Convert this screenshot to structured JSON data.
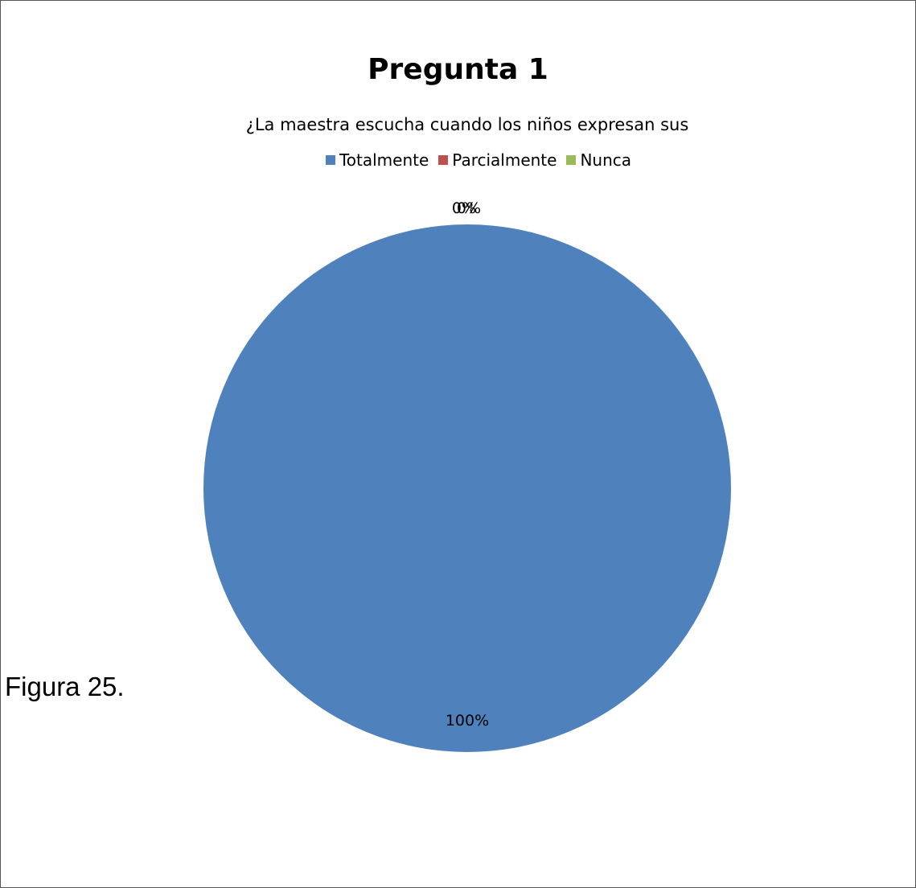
{
  "caption": "Figura  25.",
  "chart_data": {
    "type": "pie",
    "title": "Pregunta 1",
    "subtitle": "¿La maestra escucha cuando los niños expresan sus",
    "legend_position": "top",
    "categories": [
      "Totalmente",
      "Parcialmente",
      "Nunca"
    ],
    "values": [
      100,
      0,
      0
    ],
    "data_labels": [
      "100%",
      "0%",
      "0%"
    ],
    "colors": [
      "#4f81bd",
      "#c0504d",
      "#9bbb59"
    ]
  }
}
